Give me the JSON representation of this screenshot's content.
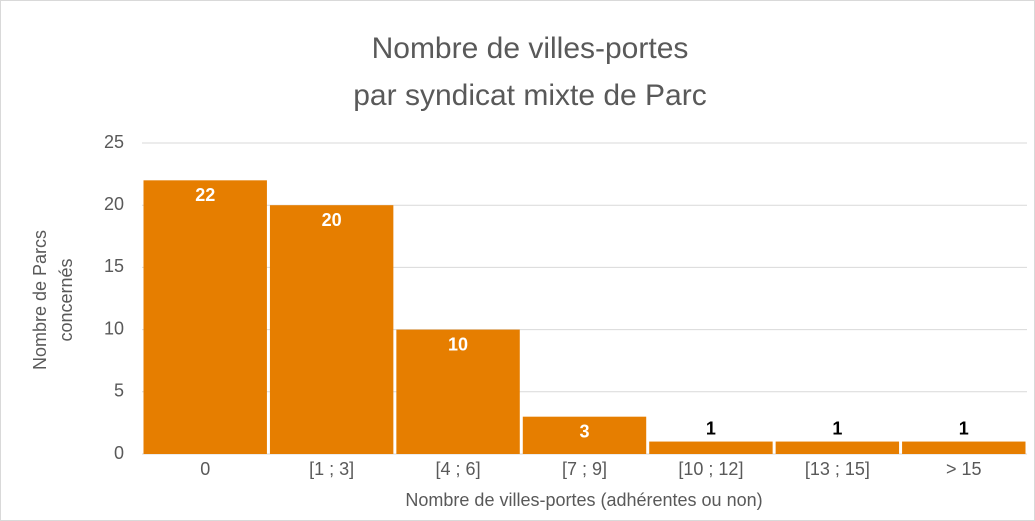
{
  "chart_data": {
    "type": "bar",
    "title": [
      "Nombre de villes-portes",
      "par syndicat mixte de Parc"
    ],
    "x_label": "Nombre de villes-portes (adhérentes ou non)",
    "y_label": [
      "Nombre de Parcs",
      "concernés"
    ],
    "categories": [
      "0",
      "[1 ; 3]",
      "[4 ; 6]",
      "[7 ; 9]",
      "[10 ; 12]",
      "[13 ; 15]",
      "> 15"
    ],
    "values": [
      22,
      20,
      10,
      3,
      1,
      1,
      1
    ],
    "color": "#e67e00",
    "ylim": [
      0,
      25
    ],
    "yticks": [
      0,
      5,
      10,
      15,
      20,
      25
    ],
    "grid": true
  }
}
